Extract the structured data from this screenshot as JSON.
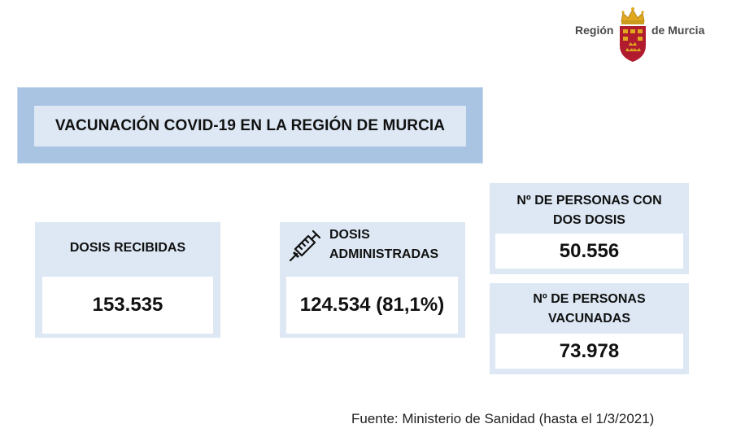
{
  "logo": {
    "left_text": "Región",
    "right_text": "de Murcia",
    "crest_icon": "region-de-murcia-crest-icon"
  },
  "title": "VACUNACIÓN COVID-19 EN LA REGIÓN DE MURCIA",
  "cards": {
    "dosis_recibidas": {
      "label": "DOSIS RECIBIDAS",
      "value": "153.535"
    },
    "dosis_administradas": {
      "label_line1": "DOSIS",
      "label_line2": "ADMINISTRADAS",
      "value": "124.534 (81,1%)",
      "icon": "syringe-icon"
    },
    "dos_dosis": {
      "label_line1": "Nº DE PERSONAS CON",
      "label_line2": "DOS DOSIS",
      "value": "50.556"
    },
    "vacunadas": {
      "label_line1": "Nº DE PERSONAS",
      "label_line2": "VACUNADAS",
      "value": "73.978"
    }
  },
  "source": "Fuente: Ministerio de Sanidad  (hasta el 1/3/2021)",
  "colors": {
    "banner_outer": "#a8c4e2",
    "card_bg": "#dde8f4",
    "value_bg": "#ffffff",
    "crest_red": "#b01c2e",
    "crest_gold": "#e0a81f"
  }
}
